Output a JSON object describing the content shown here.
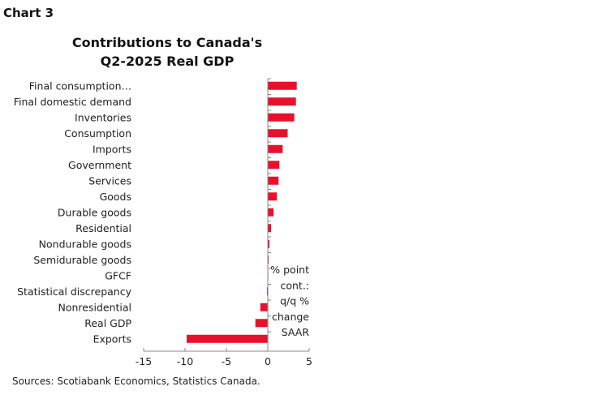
{
  "header": {
    "label": "Chart 3"
  },
  "chart_data": {
    "type": "bar",
    "orientation": "horizontal",
    "title": "Contributions to Canada's\nQ2-2025 Real GDP",
    "categories": [
      "Final consumption…",
      "Final domestic demand",
      "Inventories",
      "Consumption",
      "Imports",
      "Government",
      "Services",
      "Goods",
      "Durable goods",
      "Residential",
      "Nondurable goods",
      "Semidurable goods",
      "GFCF",
      "Statistical discrepancy",
      "Nonresidential",
      "Real GDP",
      "Exports"
    ],
    "values": [
      3.5,
      3.4,
      3.2,
      2.4,
      1.8,
      1.4,
      1.3,
      1.1,
      0.7,
      0.4,
      0.2,
      0.1,
      0.0,
      -0.1,
      -0.9,
      -1.5,
      -9.8
    ],
    "xlim": [
      -15,
      5
    ],
    "xticks": [
      "-15",
      "-10",
      "-5",
      "0",
      "5"
    ],
    "xtick_values": [
      -15,
      -10,
      -5,
      0,
      5
    ],
    "annotation": [
      "% point",
      "cont.:",
      "q/q %",
      "change",
      "SAAR"
    ],
    "grid": false,
    "bar_color": "#e8112d"
  },
  "source": "Sources: Scotiabank Economics, Statistics Canada."
}
